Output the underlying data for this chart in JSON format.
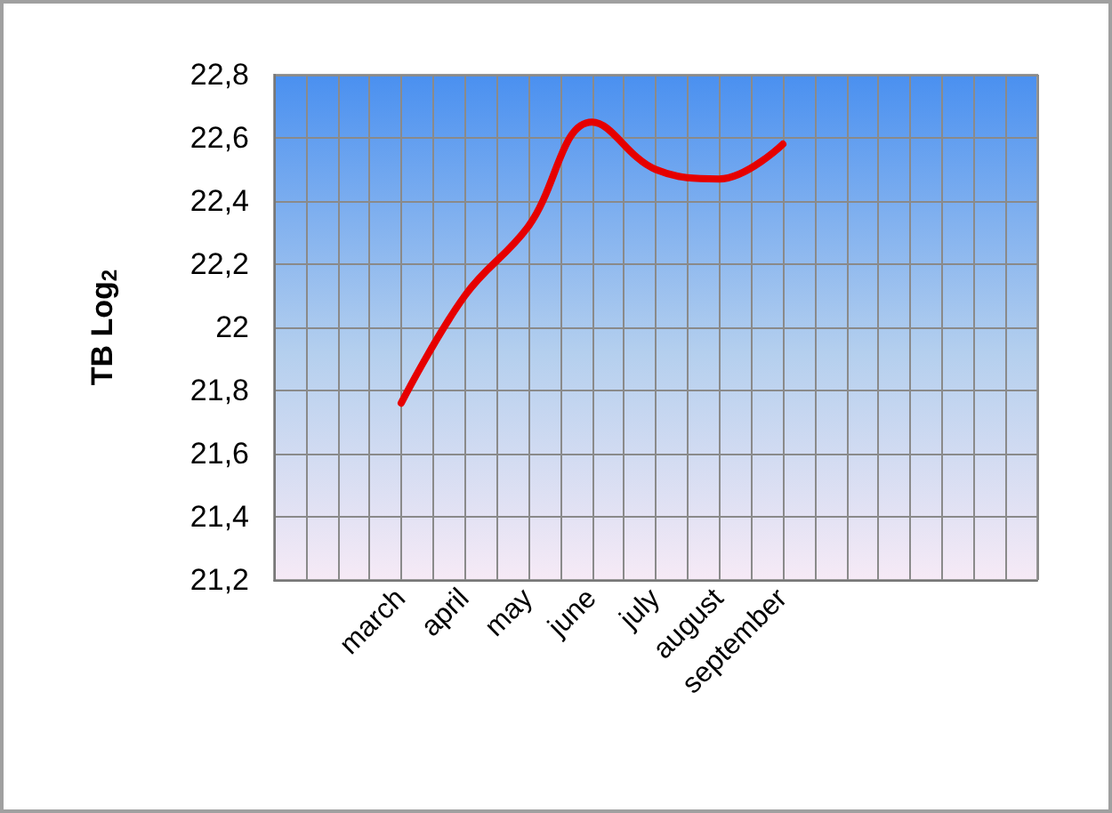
{
  "chart_data": {
    "type": "line",
    "ylabel": "TB Log$_{2}$",
    "categories": [
      null,
      null,
      "march",
      "april",
      "may",
      "june",
      "july",
      "august",
      "september",
      null,
      null,
      null,
      null
    ],
    "series": [
      {
        "color": "#e60000",
        "values": [
          null,
          null,
          21.76,
          22.1,
          22.32,
          22.65,
          22.5,
          22.47,
          22.58,
          null,
          null,
          null,
          null
        ]
      }
    ],
    "ylim": [
      21.2,
      22.8
    ],
    "yticks": [
      {
        "value": 21.2,
        "label": "21,2"
      },
      {
        "value": 21.4,
        "label": "21,4"
      },
      {
        "value": 21.6,
        "label": "21,6"
      },
      {
        "value": 21.8,
        "label": "21,8"
      },
      22,
      {
        "value": 22.2,
        "label": "22,2"
      },
      {
        "value": 22.4,
        "label": "22,4"
      },
      {
        "value": 22.6,
        "label": "22,6"
      },
      {
        "value": 22.8,
        "label": "22,8"
      }
    ],
    "grid": true,
    "marker": "none",
    "line_style": "solid"
  }
}
